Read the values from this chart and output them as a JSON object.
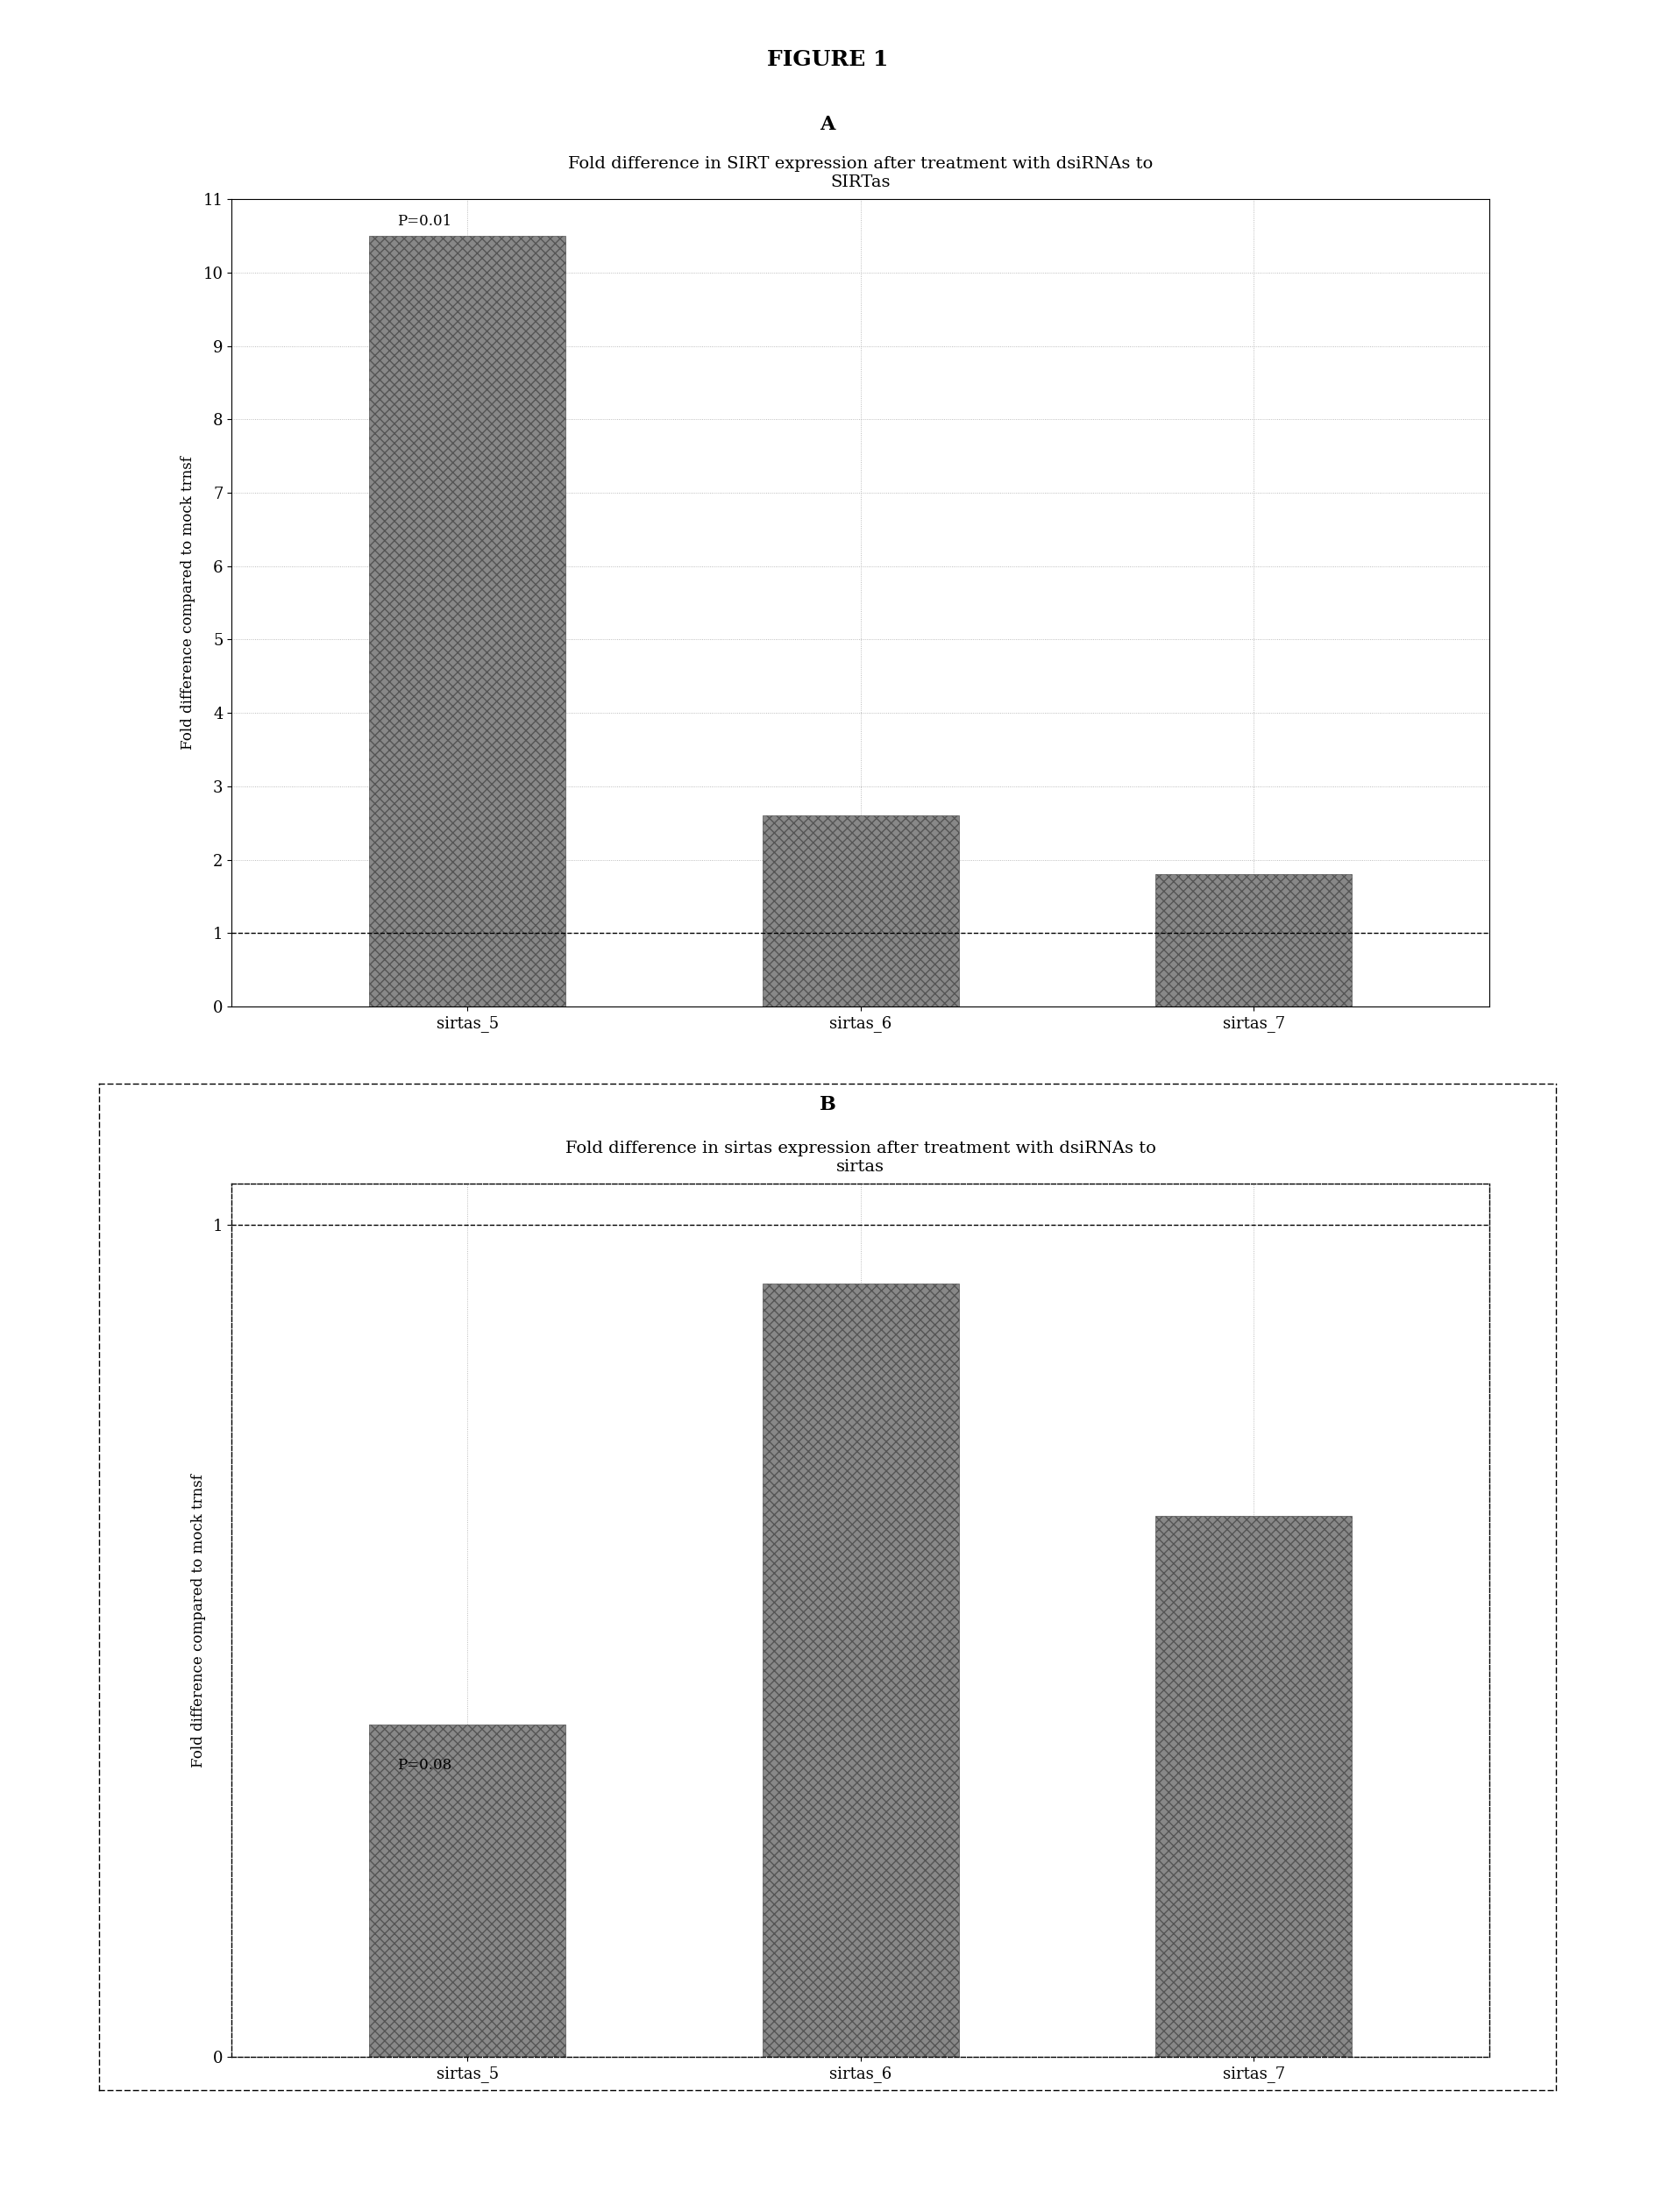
{
  "figure_title": "FIGURE 1",
  "panel_a_label": "A",
  "panel_b_label": "B",
  "panel_a_title": "Fold difference in SIRT expression after treatment with dsiRNAs to\nSIRTas",
  "panel_b_title": "Fold difference in sirtas expression after treatment with dsiRNAs to\nsirtas",
  "categories": [
    "sirtas_5",
    "sirtas_6",
    "sirtas_7"
  ],
  "panel_a_values": [
    10.5,
    2.6,
    1.8
  ],
  "panel_b_values": [
    0.4,
    0.93,
    0.65
  ],
  "panel_a_ylim": [
    0,
    11
  ],
  "panel_b_ylim": [
    0,
    1.05
  ],
  "panel_a_yticks": [
    0,
    1,
    2,
    3,
    4,
    5,
    6,
    7,
    8,
    9,
    10,
    11
  ],
  "panel_b_yticks": [
    0,
    1
  ],
  "panel_a_hline": 1.0,
  "panel_b_hline": 1.0,
  "panel_a_annotation": "P=0.01",
  "panel_b_annotation": "P=0.08",
  "ylabel": "Fold difference compared to mock trnsf",
  "bar_color": "#888888",
  "bar_hatch": "xxx",
  "hatch_color": "#555555",
  "background_color": "#ffffff",
  "bar_width": 0.5,
  "title_fontsize": 14,
  "label_fontsize": 16,
  "tick_fontsize": 13,
  "annot_fontsize": 12,
  "ylabel_fontsize": 12,
  "fig_title_fontsize": 18,
  "font_family": "serif"
}
